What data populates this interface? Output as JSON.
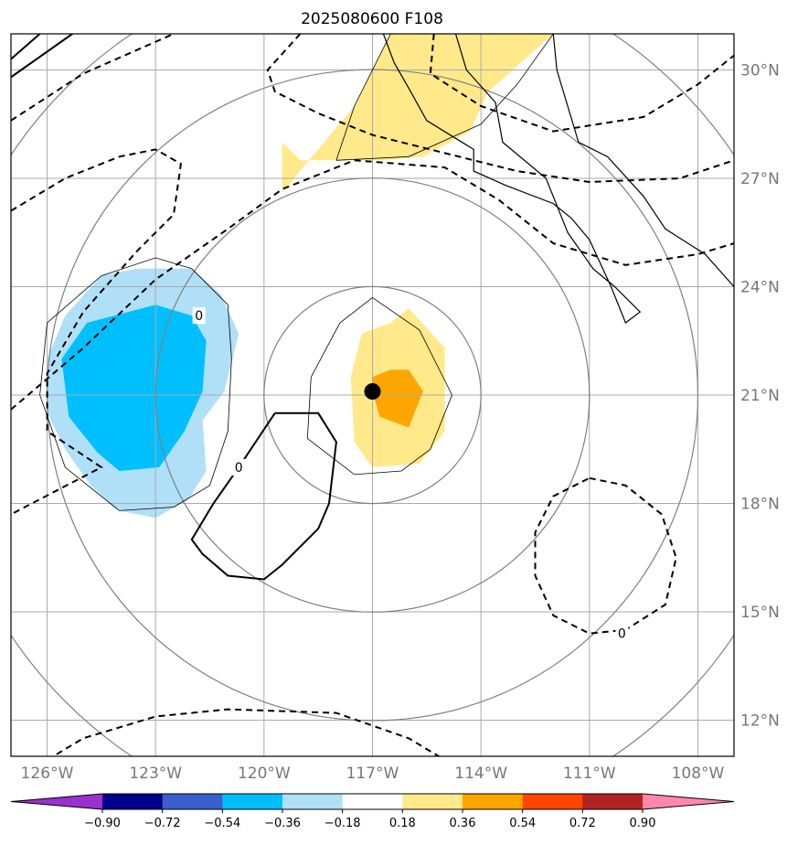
{
  "chart_data": {
    "type": "contour-map",
    "title": "2025080600 F108",
    "projection": "lat-lon",
    "xlim": [
      -127,
      -107
    ],
    "ylim": [
      11,
      31
    ],
    "grid": true,
    "x_tick_values": [
      -126,
      -123,
      -120,
      -117,
      -114,
      -111,
      -108
    ],
    "x_tick_labels": [
      "126°W",
      "123°W",
      "120°W",
      "117°W",
      "114°W",
      "111°W",
      "108°W"
    ],
    "y_tick_values": [
      12,
      15,
      18,
      21,
      24,
      27,
      30
    ],
    "y_tick_labels": [
      "12°N",
      "15°N",
      "18°N",
      "21°N",
      "24°N",
      "27°N",
      "30°N"
    ],
    "center_marker": {
      "lon": -117.0,
      "lat": 21.1,
      "color": "#000000"
    },
    "range_rings": {
      "center": [
        -117.0,
        21.0
      ],
      "radii_deg": [
        3,
        6,
        9,
        12
      ],
      "color": "#808080"
    },
    "colorbar": {
      "orientation": "horizontal",
      "extend": "both",
      "boundaries": [
        -0.9,
        -0.72,
        -0.54,
        -0.36,
        -0.18,
        0.18,
        0.36,
        0.54,
        0.72,
        0.9
      ],
      "tick_labels": [
        "−0.90",
        "−0.72",
        "−0.54",
        "−0.36",
        "−0.18",
        "0.18",
        "0.36",
        "0.54",
        "0.72",
        "0.90"
      ],
      "colors": [
        "#9932cc",
        "#00008b",
        "#3a5fcd",
        "#00bfff",
        "#b0e0f8",
        "#ffffff",
        "#ffe98a",
        "#ffa500",
        "#ff4500",
        "#b22222",
        "#ff88aa"
      ]
    },
    "filled_regions": [
      {
        "level": "-0.36..-0.18",
        "color": "#b0e0f8",
        "polygon": [
          [
            -124.5,
            24.3
          ],
          [
            -123.5,
            24.5
          ],
          [
            -122.0,
            24.5
          ],
          [
            -121.2,
            23.8
          ],
          [
            -120.7,
            22.7
          ],
          [
            -121.1,
            21.1
          ],
          [
            -121.7,
            20.3
          ],
          [
            -121.6,
            18.9
          ],
          [
            -122.1,
            18.1
          ],
          [
            -123.0,
            17.6
          ],
          [
            -124.0,
            17.8
          ],
          [
            -124.8,
            18.5
          ],
          [
            -125.5,
            19.5
          ],
          [
            -126.0,
            20.5
          ],
          [
            -126.0,
            22.0
          ],
          [
            -125.5,
            23.2
          ]
        ]
      },
      {
        "level": "-0.54..-0.36",
        "color": "#00bfff",
        "polygon": [
          [
            -123.0,
            23.5
          ],
          [
            -122.0,
            23.2
          ],
          [
            -121.6,
            22.5
          ],
          [
            -121.7,
            21.1
          ],
          [
            -122.2,
            20.0
          ],
          [
            -122.9,
            19.0
          ],
          [
            -124.0,
            18.9
          ],
          [
            -124.6,
            19.4
          ],
          [
            -125.4,
            20.4
          ],
          [
            -125.6,
            22.0
          ],
          [
            -124.9,
            23.0
          ]
        ]
      },
      {
        "level": "0.18..0.36",
        "color": "#ffe98a",
        "polygon": [
          [
            -116.0,
            23.4
          ],
          [
            -115.0,
            22.3
          ],
          [
            -115.0,
            20.0
          ],
          [
            -115.7,
            19.1
          ],
          [
            -117.0,
            19.0
          ],
          [
            -117.5,
            19.7
          ],
          [
            -117.6,
            21.5
          ],
          [
            -117.3,
            22.7
          ],
          [
            -116.5,
            23.0
          ]
        ]
      },
      {
        "level": "0.36..0.54",
        "color": "#ffa500",
        "polygon": [
          [
            -116.0,
            21.7
          ],
          [
            -115.6,
            21.1
          ],
          [
            -116.0,
            20.1
          ],
          [
            -116.8,
            20.4
          ],
          [
            -117.0,
            21.1
          ],
          [
            -117.0,
            21.5
          ],
          [
            -116.5,
            21.7
          ]
        ]
      },
      {
        "level": "0.18..0.36",
        "color": "#ffe98a",
        "polygon": [
          [
            -119.5,
            26.6
          ],
          [
            -117.5,
            29.0
          ],
          [
            -116.5,
            31.0
          ],
          [
            -112.0,
            31.0
          ],
          [
            -113.8,
            29.4
          ],
          [
            -114.3,
            28.3
          ],
          [
            -115.6,
            27.6
          ],
          [
            -116.7,
            27.5
          ],
          [
            -118.0,
            27.5
          ],
          [
            -119.0,
            27.5
          ],
          [
            -119.5,
            28.0
          ]
        ]
      }
    ],
    "solid_contours": [
      {
        "label": "0",
        "label_at": [
          -120.7,
          19.0
        ],
        "line": [
          [
            -119.7,
            20.5
          ],
          [
            -118.5,
            20.5
          ],
          [
            -118.0,
            19.7
          ],
          [
            -118.2,
            18.0
          ],
          [
            -118.5,
            17.3
          ],
          [
            -119.5,
            16.3
          ],
          [
            -120.0,
            15.9
          ],
          [
            -121.0,
            16.0
          ],
          [
            -121.7,
            16.6
          ],
          [
            -122.0,
            17.0
          ],
          [
            -121.4,
            18.0
          ],
          [
            -120.7,
            19.0
          ],
          [
            -119.7,
            20.5
          ]
        ]
      },
      {
        "label": "",
        "line": [
          [
            -127.0,
            29.8
          ],
          [
            -125.3,
            31.0
          ]
        ]
      },
      {
        "label": "",
        "line": [
          [
            -127.0,
            30.3
          ],
          [
            -126.2,
            31.0
          ]
        ]
      }
    ],
    "dashed_contours": [
      {
        "label": "0",
        "label_at": [
          -121.8,
          23.2
        ],
        "line": [
          [
            -127.0,
            20.6
          ],
          [
            -125.0,
            22.3
          ],
          [
            -123.0,
            24.2
          ],
          [
            -121.0,
            25.6
          ],
          [
            -119.5,
            26.7
          ],
          [
            -117.5,
            27.5
          ],
          [
            -115.0,
            27.3
          ],
          [
            -113.5,
            26.4
          ],
          [
            -112.0,
            25.2
          ],
          [
            -110.0,
            24.6
          ],
          [
            -108.0,
            24.9
          ],
          [
            -107.0,
            25.2
          ]
        ]
      },
      {
        "label": "",
        "line": [
          [
            -127.0,
            26.1
          ],
          [
            -125.5,
            27.0
          ],
          [
            -124.0,
            27.6
          ],
          [
            -123.0,
            27.8
          ],
          [
            -122.3,
            27.4
          ],
          [
            -122.5,
            26.0
          ],
          [
            -123.5,
            25.0
          ],
          [
            -125.0,
            23.3
          ],
          [
            -126.0,
            21.6
          ],
          [
            -126.0,
            20.0
          ],
          [
            -124.5,
            19.0
          ],
          [
            -127.0,
            17.7
          ]
        ]
      },
      {
        "label": "",
        "line": [
          [
            -127.0,
            28.6
          ],
          [
            -125.0,
            29.9
          ],
          [
            -122.5,
            31.0
          ]
        ]
      },
      {
        "label": "",
        "line": [
          [
            -119.0,
            31.0
          ],
          [
            -119.9,
            30.0
          ],
          [
            -119.7,
            29.4
          ],
          [
            -118.5,
            28.8
          ],
          [
            -117.0,
            28.2
          ],
          [
            -115.0,
            27.7
          ],
          [
            -113.0,
            27.2
          ],
          [
            -111.0,
            26.9
          ],
          [
            -108.5,
            27.0
          ],
          [
            -107.0,
            27.5
          ]
        ]
      },
      {
        "label": "",
        "line": [
          [
            -115.3,
            31.0
          ],
          [
            -115.4,
            29.9
          ],
          [
            -114.0,
            29.0
          ],
          [
            -112.0,
            28.3
          ],
          [
            -109.5,
            28.7
          ],
          [
            -108.0,
            29.6
          ],
          [
            -107.0,
            30.4
          ]
        ]
      },
      {
        "label": "0",
        "label_at": [
          -110.1,
          14.4
        ],
        "line": [
          [
            -111.0,
            18.7
          ],
          [
            -110.0,
            18.5
          ],
          [
            -109.0,
            17.7
          ],
          [
            -108.6,
            16.5
          ],
          [
            -108.9,
            15.2
          ],
          [
            -110.0,
            14.5
          ],
          [
            -111.0,
            14.4
          ],
          [
            -112.0,
            14.9
          ],
          [
            -112.5,
            16.0
          ],
          [
            -112.5,
            17.2
          ],
          [
            -112.0,
            18.2
          ],
          [
            -111.0,
            18.7
          ]
        ]
      },
      {
        "label": "",
        "line": [
          [
            -126.0,
            10.9
          ],
          [
            -125.0,
            11.5
          ],
          [
            -123.0,
            12.1
          ],
          [
            -121.0,
            12.3
          ],
          [
            -118.0,
            12.2
          ],
          [
            -116.0,
            11.5
          ],
          [
            -115.0,
            10.9
          ]
        ]
      }
    ],
    "thin_contours": [
      {
        "line": [
          [
            -122.0,
            24.5
          ],
          [
            -121.0,
            23.5
          ],
          [
            -120.9,
            22.0
          ],
          [
            -121.0,
            20.0
          ],
          [
            -121.5,
            18.5
          ],
          [
            -122.5,
            17.9
          ],
          [
            -124.0,
            17.8
          ],
          [
            -125.5,
            19.0
          ],
          [
            -126.2,
            21.0
          ],
          [
            -126.0,
            23.0
          ],
          [
            -124.5,
            24.3
          ],
          [
            -123.0,
            24.8
          ],
          [
            -122.0,
            24.5
          ]
        ]
      },
      {
        "line": [
          [
            -117.0,
            23.7
          ],
          [
            -115.7,
            22.8
          ],
          [
            -114.8,
            21.0
          ],
          [
            -115.4,
            19.5
          ],
          [
            -116.2,
            18.9
          ],
          [
            -117.5,
            18.8
          ],
          [
            -118.8,
            19.8
          ],
          [
            -118.7,
            21.5
          ],
          [
            -117.9,
            23.0
          ],
          [
            -117.0,
            23.7
          ]
        ]
      },
      {
        "line": [
          [
            -118.0,
            27.5
          ],
          [
            -117.5,
            29.0
          ],
          [
            -116.5,
            31.0
          ],
          [
            -112.0,
            31.0
          ],
          [
            -113.0,
            29.6
          ],
          [
            -114.0,
            28.5
          ],
          [
            -116.0,
            27.6
          ],
          [
            -118.0,
            27.5
          ]
        ]
      }
    ],
    "coastline": [
      [
        [
          -116.7,
          31.0
        ],
        [
          -116.4,
          30.2
        ],
        [
          -116.0,
          29.5
        ],
        [
          -115.5,
          28.6
        ],
        [
          -114.2,
          27.8
        ],
        [
          -114.2,
          27.2
        ],
        [
          -113.3,
          26.8
        ],
        [
          -112.0,
          26.3
        ],
        [
          -111.5,
          25.9
        ],
        [
          -111.0,
          25.3
        ],
        [
          -110.4,
          24.0
        ],
        [
          -110.0,
          23.0
        ],
        [
          -109.6,
          23.3
        ],
        [
          -110.3,
          24.0
        ],
        [
          -110.9,
          24.5
        ],
        [
          -111.6,
          25.5
        ],
        [
          -112.2,
          27.0
        ],
        [
          -113.4,
          28.0
        ],
        [
          -113.6,
          29.1
        ],
        [
          -114.4,
          30.0
        ],
        [
          -114.7,
          31.0
        ]
      ],
      [
        [
          -112.0,
          31.0
        ],
        [
          -111.9,
          30.0
        ],
        [
          -111.3,
          28.0
        ],
        [
          -110.5,
          27.6
        ],
        [
          -109.5,
          26.5
        ],
        [
          -108.9,
          25.6
        ],
        [
          -107.8,
          24.9
        ],
        [
          -107.0,
          24.0
        ]
      ]
    ]
  }
}
